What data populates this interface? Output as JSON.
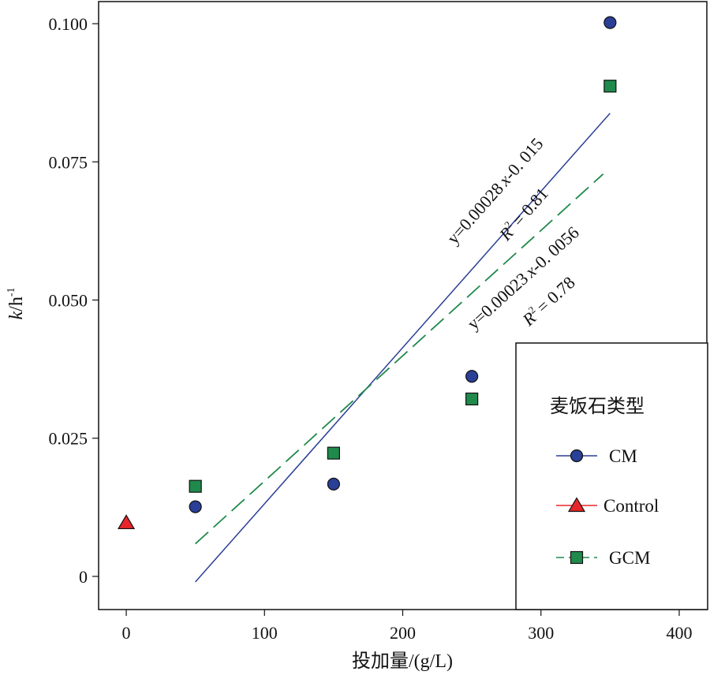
{
  "chart_data": {
    "type": "scatter",
    "xlabel": "投加量/(g/L)",
    "ylabel_italic": "k",
    "ylabel_rest": "/h",
    "ylabel_sup": "-1",
    "xlim": [
      -20,
      420
    ],
    "ylim": [
      -0.006,
      0.104
    ],
    "xticks": [
      0,
      100,
      200,
      300,
      400
    ],
    "xtick_labels": [
      "0",
      "100",
      "200",
      "300",
      "400"
    ],
    "yticks": [
      0,
      0.025,
      0.05,
      0.075,
      0.1
    ],
    "ytick_labels": [
      "0",
      "0.025",
      "0.050",
      "0.075",
      "0.100"
    ],
    "legend": {
      "title": "麦饭石类型",
      "position": "bottom-right",
      "entries": [
        {
          "label": "CM",
          "marker": "circle",
          "color": "#2a3f96",
          "line": "solid"
        },
        {
          "label": "Control",
          "marker": "triangle",
          "color": "#e8262a",
          "line": "solid"
        },
        {
          "label": "GCM",
          "marker": "square",
          "color": "#1f8a4c",
          "line": "dashed"
        }
      ]
    },
    "series": [
      {
        "name": "CM",
        "marker": "circle",
        "color": "#2a3f96",
        "x": [
          50,
          150,
          250,
          350
        ],
        "y": [
          0.0126,
          0.0167,
          0.0362,
          0.1002
        ]
      },
      {
        "name": "Control",
        "marker": "triangle",
        "color": "#e8262a",
        "x": [
          0
        ],
        "y": [
          0.0097
        ]
      },
      {
        "name": "GCM",
        "marker": "square",
        "color": "#1f8a4c",
        "x": [
          50,
          150,
          250,
          350
        ],
        "y": [
          0.0163,
          0.0223,
          0.0321,
          0.0887
        ]
      }
    ],
    "fits": [
      {
        "series": "CM",
        "style": "solid",
        "color": "#2a3f96",
        "x_range": [
          50,
          350
        ],
        "y_range": [
          -0.001,
          0.0838
        ],
        "equation_prefix": "y=0.00028",
        "equation_var": "x",
        "equation_suffix": "-0. 015",
        "r2_value": "= 0.81"
      },
      {
        "series": "GCM",
        "style": "dashed",
        "color": "#1f8a4c",
        "x_range": [
          50,
          345
        ],
        "y_range": [
          0.0059,
          0.0728
        ],
        "equation_prefix": "y=0.00023",
        "equation_var": "x",
        "equation_suffix": "-0. 0056",
        "r2_value": "= 0.78"
      }
    ]
  }
}
